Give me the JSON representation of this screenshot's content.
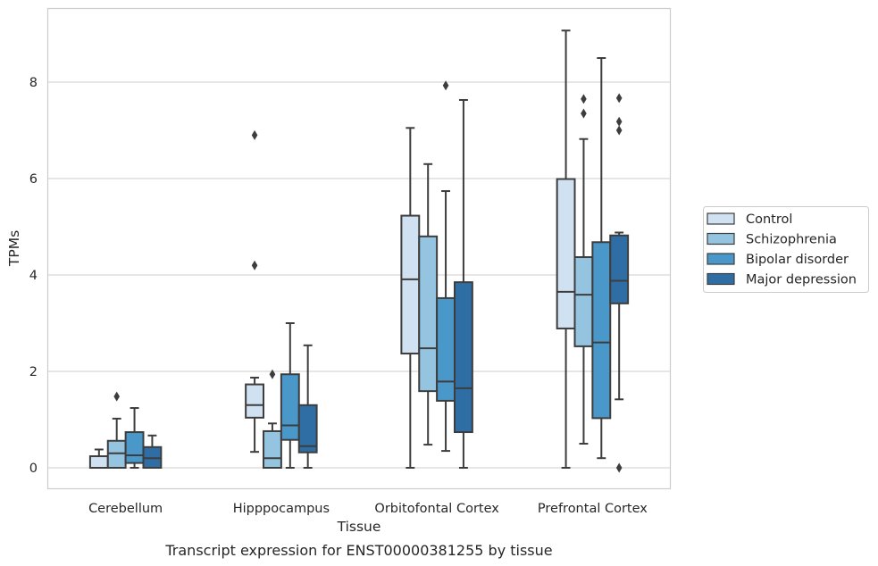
{
  "chart_data": {
    "type": "box",
    "xlabel": "Tissue",
    "ylabel": "TPMs",
    "caption": "Transcript expression for ENST00000381255 by tissue",
    "ylim": [
      -0.45,
      9.7
    ],
    "yticks": [
      0,
      2,
      4,
      6,
      8
    ],
    "grid": "horizontal",
    "legend_position": "right",
    "categories": [
      "Cerebellum",
      "Hipppocampus",
      "Orbitofontal Cortex",
      "Prefrontal Cortex"
    ],
    "series": [
      {
        "name": "Control",
        "color": "#d0e1f2",
        "boxes": [
          {
            "whislo": 0.0,
            "q1": 0.0,
            "med": 0.0,
            "q3": 0.24,
            "whishi": 0.38,
            "fliers": []
          },
          {
            "whislo": 0.33,
            "q1": 1.04,
            "med": 1.3,
            "q3": 1.73,
            "whishi": 1.87,
            "fliers": [
              4.2,
              6.9
            ]
          },
          {
            "whislo": 0.0,
            "q1": 2.37,
            "med": 3.91,
            "q3": 5.23,
            "whishi": 7.05,
            "fliers": []
          },
          {
            "whislo": 0.0,
            "q1": 2.89,
            "med": 3.65,
            "q3": 5.99,
            "whishi": 9.07,
            "fliers": []
          }
        ]
      },
      {
        "name": "Schizophrenia",
        "color": "#94c4df",
        "boxes": [
          {
            "whislo": 0.0,
            "q1": 0.0,
            "med": 0.3,
            "q3": 0.56,
            "whishi": 1.02,
            "fliers": [
              1.48
            ]
          },
          {
            "whislo": 0.0,
            "q1": 0.0,
            "med": 0.2,
            "q3": 0.76,
            "whishi": 0.92,
            "fliers": [
              1.94
            ]
          },
          {
            "whislo": 0.48,
            "q1": 1.59,
            "med": 2.48,
            "q3": 4.8,
            "whishi": 6.3,
            "fliers": []
          },
          {
            "whislo": 0.5,
            "q1": 2.52,
            "med": 3.59,
            "q3": 4.37,
            "whishi": 6.82,
            "fliers": [
              7.35,
              7.65
            ]
          }
        ]
      },
      {
        "name": "Bipolar disorder",
        "color": "#4a98c9",
        "boxes": [
          {
            "whislo": 0.0,
            "q1": 0.1,
            "med": 0.26,
            "q3": 0.74,
            "whishi": 1.24,
            "fliers": []
          },
          {
            "whislo": 0.0,
            "q1": 0.58,
            "med": 0.88,
            "q3": 1.94,
            "whishi": 3.0,
            "fliers": []
          },
          {
            "whislo": 0.35,
            "q1": 1.39,
            "med": 1.79,
            "q3": 3.52,
            "whishi": 5.74,
            "fliers": [
              7.93
            ]
          },
          {
            "whislo": 0.2,
            "q1": 1.03,
            "med": 2.6,
            "q3": 4.68,
            "whishi": 8.5,
            "fliers": []
          }
        ]
      },
      {
        "name": "Major depression",
        "color": "#2e6ea5",
        "boxes": [
          {
            "whislo": 0.0,
            "q1": 0.0,
            "med": 0.2,
            "q3": 0.43,
            "whishi": 0.67,
            "fliers": []
          },
          {
            "whislo": 0.0,
            "q1": 0.32,
            "med": 0.45,
            "q3": 1.3,
            "whishi": 2.54,
            "fliers": []
          },
          {
            "whislo": 0.0,
            "q1": 0.74,
            "med": 1.65,
            "q3": 3.85,
            "whishi": 7.63,
            "fliers": []
          },
          {
            "whislo": 1.42,
            "q1": 3.41,
            "med": 3.88,
            "q3": 4.82,
            "whishi": 4.88,
            "fliers": [
              0.0,
              7.0,
              7.18,
              7.67
            ]
          }
        ]
      }
    ]
  }
}
